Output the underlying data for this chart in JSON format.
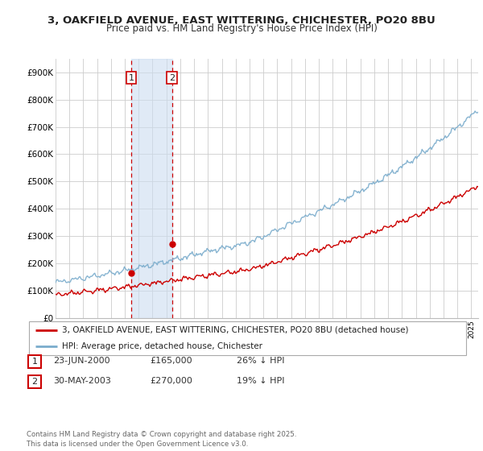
{
  "title": "3, OAKFIELD AVENUE, EAST WITTERING, CHICHESTER, PO20 8BU",
  "subtitle": "Price paid vs. HM Land Registry's House Price Index (HPI)",
  "background_color": "#ffffff",
  "plot_bg_color": "#ffffff",
  "grid_color": "#cccccc",
  "ylim": [
    0,
    950000
  ],
  "yticks": [
    0,
    100000,
    200000,
    300000,
    400000,
    500000,
    600000,
    700000,
    800000,
    900000
  ],
  "ytick_labels": [
    "£0",
    "£100K",
    "£200K",
    "£300K",
    "£400K",
    "£500K",
    "£600K",
    "£700K",
    "£800K",
    "£900K"
  ],
  "sale1_x": 2000.47,
  "sale1_y": 165000,
  "sale2_x": 2003.41,
  "sale2_y": 270000,
  "line_red_color": "#cc0000",
  "line_blue_color": "#7aaccc",
  "shade_color": "#ccddf0",
  "legend_label_red": "3, OAKFIELD AVENUE, EAST WITTERING, CHICHESTER, PO20 8BU (detached house)",
  "legend_label_blue": "HPI: Average price, detached house, Chichester",
  "footnote": "Contains HM Land Registry data © Crown copyright and database right 2025.\nThis data is licensed under the Open Government Licence v3.0.",
  "table_rows": [
    {
      "num": "1",
      "date": "23-JUN-2000",
      "price": "£165,000",
      "pct": "26% ↓ HPI"
    },
    {
      "num": "2",
      "date": "30-MAY-2003",
      "price": "£270,000",
      "pct": "19% ↓ HPI"
    }
  ],
  "xmin": 1995,
  "xmax": 2025.5
}
